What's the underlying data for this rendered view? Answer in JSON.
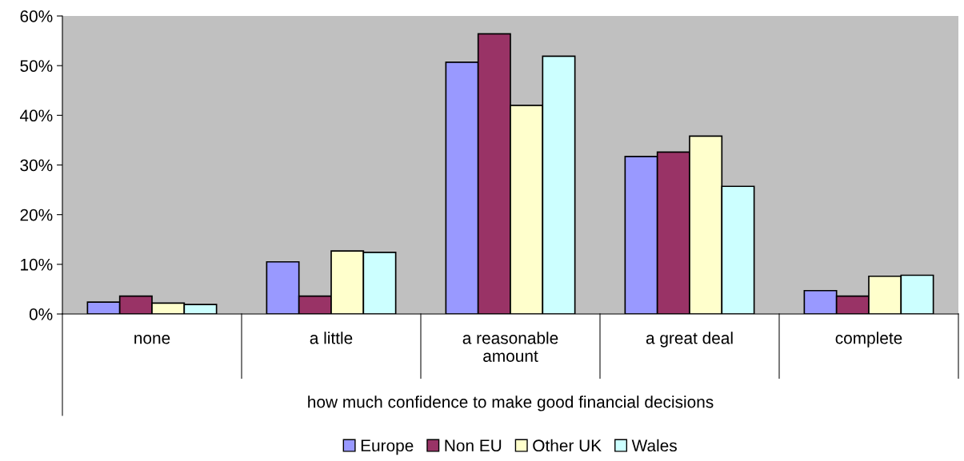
{
  "chart_data": {
    "type": "bar",
    "xlabel": "how much confidence to make good financial decisions",
    "categories": [
      "none",
      "a little",
      "a reasonable\namount",
      "a great deal",
      "complete"
    ],
    "series": [
      {
        "name": "Europe",
        "color": "#9999ff",
        "values": [
          2.4,
          10.5,
          50.7,
          31.7,
          4.7
        ]
      },
      {
        "name": "Non EU",
        "color": "#993366",
        "values": [
          3.6,
          3.6,
          56.4,
          32.6,
          3.6
        ]
      },
      {
        "name": "Other UK",
        "color": "#ffffcc",
        "values": [
          2.2,
          12.7,
          42.0,
          35.8,
          7.6
        ]
      },
      {
        "name": "Wales",
        "color": "#ccffff",
        "values": [
          1.9,
          12.4,
          51.9,
          25.7,
          7.8
        ]
      }
    ],
    "ylim": [
      0,
      60
    ],
    "yticks": [
      {
        "value": 0,
        "label": "0%"
      },
      {
        "value": 10,
        "label": "10%"
      },
      {
        "value": 20,
        "label": "20%"
      },
      {
        "value": 30,
        "label": "30%"
      },
      {
        "value": 40,
        "label": "40%"
      },
      {
        "value": 50,
        "label": "50%"
      },
      {
        "value": 60,
        "label": "60%"
      }
    ],
    "grid": false,
    "legend": "bottom"
  }
}
